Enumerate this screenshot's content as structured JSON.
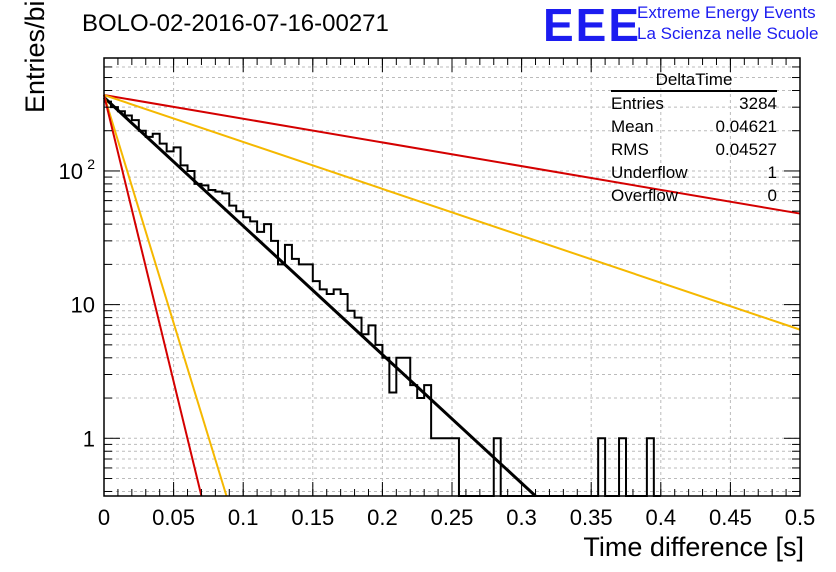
{
  "title": "BOLO-02-2016-07-16-00271",
  "logo": {
    "mark": "EEE",
    "line1": "Extreme Energy Events",
    "line2": "La Scienza nelle Scuole",
    "color": "#1c1cf0"
  },
  "stats": {
    "title": "DeltaTime",
    "rows": [
      {
        "label": "Entries",
        "value": "3284"
      },
      {
        "label": "Mean",
        "value": "0.04621"
      },
      {
        "label": "RMS",
        "value": "0.04527"
      },
      {
        "label": "Underflow",
        "value": "1"
      },
      {
        "label": "Overflow",
        "value": "0"
      }
    ]
  },
  "chart_data": {
    "type": "line",
    "xlabel": "Time difference [s]",
    "ylabel": "Entries/bin",
    "xlim": [
      0,
      0.5
    ],
    "ylim": [
      0.37,
      700
    ],
    "yscale": "log",
    "grid": true,
    "x_ticks": [
      "0",
      "0.05",
      "0.1",
      "0.15",
      "0.2",
      "0.25",
      "0.3",
      "0.35",
      "0.4",
      "0.45",
      "0.5"
    ],
    "y_ticks": [
      {
        "value": 1,
        "label": "1"
      },
      {
        "value": 10,
        "label": "10"
      },
      {
        "value": 100,
        "label": "10",
        "exp": "2"
      }
    ],
    "histogram": {
      "name": "DeltaTime",
      "color": "#000000",
      "bin_width": 0.005,
      "values": [
        330,
        300,
        280,
        260,
        240,
        200,
        180,
        190,
        160,
        140,
        150,
        110,
        100,
        80,
        78,
        72,
        70,
        68,
        55,
        50,
        45,
        42,
        35,
        40,
        30,
        20,
        28,
        22,
        20,
        20,
        15,
        13,
        12,
        13,
        12,
        9,
        8,
        6,
        7,
        5,
        4,
        2.2,
        4,
        4,
        2.5,
        2,
        2.5,
        1,
        1,
        1,
        1,
        0,
        0,
        0,
        0,
        0,
        1,
        0,
        0,
        0,
        0,
        0,
        0,
        0,
        0,
        0,
        0,
        0,
        0,
        0,
        0,
        1,
        0,
        0,
        1,
        0,
        0,
        0,
        1,
        0
      ]
    },
    "series": [
      {
        "color": "#000000",
        "x": [
          0,
          0.31
        ],
        "y": [
          355,
          0.37
        ]
      },
      {
        "color": "#d40000",
        "x": [
          0,
          0.5
        ],
        "y": [
          370,
          48
        ]
      },
      {
        "color": "#f5b800",
        "x": [
          0,
          0.5
        ],
        "y": [
          370,
          6.5
        ]
      },
      {
        "color": "#f5b800",
        "x": [
          0,
          0.088
        ],
        "y": [
          370,
          0.37
        ]
      },
      {
        "color": "#d40000",
        "x": [
          0,
          0.07
        ],
        "y": [
          370,
          0.37
        ]
      }
    ]
  }
}
